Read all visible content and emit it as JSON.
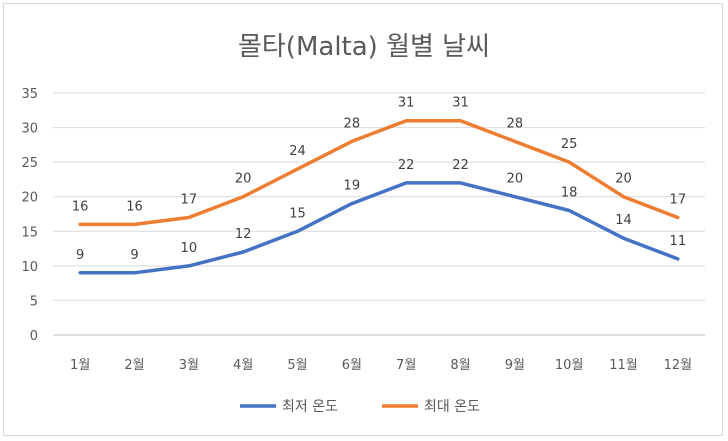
{
  "chart_data": {
    "type": "line",
    "title": "몰타(Malta) 월별 날씨",
    "xlabel": "",
    "ylabel": "",
    "categories": [
      "1월",
      "2월",
      "3월",
      "4월",
      "5월",
      "6월",
      "7월",
      "8월",
      "9월",
      "10월",
      "11월",
      "12월"
    ],
    "ylim": [
      0,
      35
    ],
    "yticks": [
      0,
      5,
      10,
      15,
      20,
      25,
      30,
      35
    ],
    "grid": true,
    "legend": "bottom",
    "series": [
      {
        "name": "최저 온도",
        "color": "#4472c4",
        "values": [
          9,
          9,
          10,
          12,
          15,
          19,
          22,
          22,
          20,
          18,
          14,
          11
        ]
      },
      {
        "name": "최대 온도",
        "color": "#ed7d31",
        "values": [
          16,
          16,
          17,
          20,
          24,
          28,
          31,
          31,
          28,
          25,
          20,
          17
        ]
      }
    ]
  }
}
